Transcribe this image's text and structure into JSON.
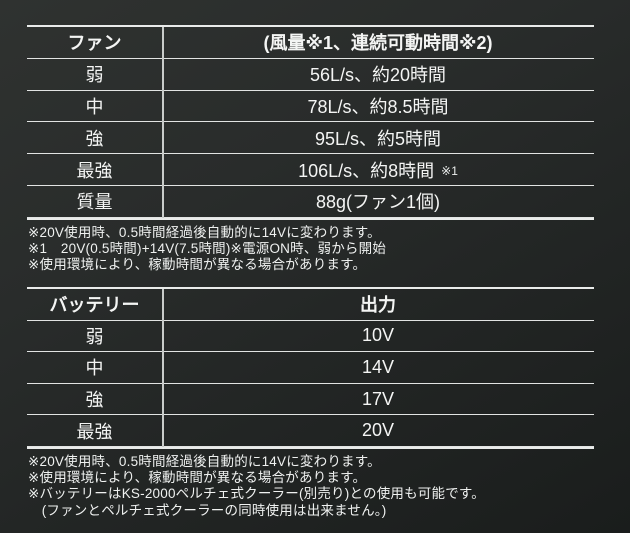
{
  "colors": {
    "background_light": "#2f3230",
    "background_dark": "#1a1d1c",
    "rule_line": "#e9ebea",
    "text": "#f4f5f4"
  },
  "fan_table": {
    "header": {
      "col1": "ファン",
      "col2": "(風量※1、連続可動時間※2)"
    },
    "rows": [
      {
        "label": "弱",
        "value": "56L/s、約20時間"
      },
      {
        "label": "中",
        "value": "78L/s、約8.5時間"
      },
      {
        "label": "強",
        "value": "95L/s、約5時間"
      },
      {
        "label": "最強",
        "value": "106L/s、約8時間",
        "note_ref": "※1"
      },
      {
        "label": "質量",
        "value": "88g(ファン1個)"
      }
    ],
    "notes": [
      "※20V使用時、0.5時間経過後自動的に14Vに変わります。",
      "※1　20V(0.5時間)+14V(7.5時間)※電源ON時、弱から開始",
      "※使用環境により、稼動時間が異なる場合があります。"
    ]
  },
  "battery_table": {
    "header": {
      "col1": "バッテリー",
      "col2": "出力"
    },
    "rows": [
      {
        "label": "弱",
        "value": "10V"
      },
      {
        "label": "中",
        "value": "14V"
      },
      {
        "label": "強",
        "value": "17V"
      },
      {
        "label": "最強",
        "value": "20V"
      }
    ],
    "notes": [
      "※20V使用時、0.5時間経過後自動的に14Vに変わります。",
      "※使用環境により、稼動時間が異なる場合があります。",
      "※バッテリーはKS-2000ペルチェ式クーラー(別売り)との使用も可能です。",
      "　(ファンとペルチェ式クーラーの同時使用は出来ません。)"
    ]
  }
}
